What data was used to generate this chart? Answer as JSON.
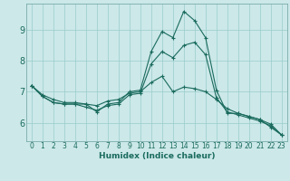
{
  "xlabel": "Humidex (Indice chaleur)",
  "bg_color": "#cce8e8",
  "line_color": "#1a6b5e",
  "grid_color": "#99cccc",
  "xlim": [
    -0.5,
    23.5
  ],
  "ylim": [
    5.4,
    9.85
  ],
  "xticks": [
    0,
    1,
    2,
    3,
    4,
    5,
    6,
    7,
    8,
    9,
    10,
    11,
    12,
    13,
    14,
    15,
    16,
    17,
    18,
    19,
    20,
    21,
    22,
    23
  ],
  "yticks": [
    6,
    7,
    8,
    9
  ],
  "series": [
    [
      7.2,
      6.85,
      6.65,
      6.6,
      6.6,
      6.6,
      6.35,
      6.6,
      6.65,
      7.0,
      7.05,
      8.3,
      8.95,
      8.75,
      9.6,
      9.3,
      8.75,
      7.05,
      6.3,
      6.3,
      6.2,
      6.1,
      5.85,
      5.6
    ],
    [
      7.2,
      6.85,
      6.65,
      6.6,
      6.6,
      6.5,
      6.4,
      6.55,
      6.6,
      6.9,
      6.95,
      7.9,
      8.3,
      8.1,
      8.5,
      8.6,
      8.2,
      6.8,
      6.35,
      6.25,
      6.15,
      6.05,
      5.9,
      5.6
    ],
    [
      7.2,
      6.9,
      6.75,
      6.65,
      6.65,
      6.6,
      6.55,
      6.7,
      6.75,
      6.95,
      7.0,
      7.3,
      7.5,
      7.0,
      7.15,
      7.1,
      7.0,
      6.75,
      6.45,
      6.3,
      6.2,
      6.1,
      5.95,
      5.6
    ]
  ],
  "xlabel_fontsize": 6.5,
  "tick_fontsize": 5.5,
  "ytick_fontsize": 7.0,
  "marker_size": 3.0,
  "linewidth": 0.8
}
